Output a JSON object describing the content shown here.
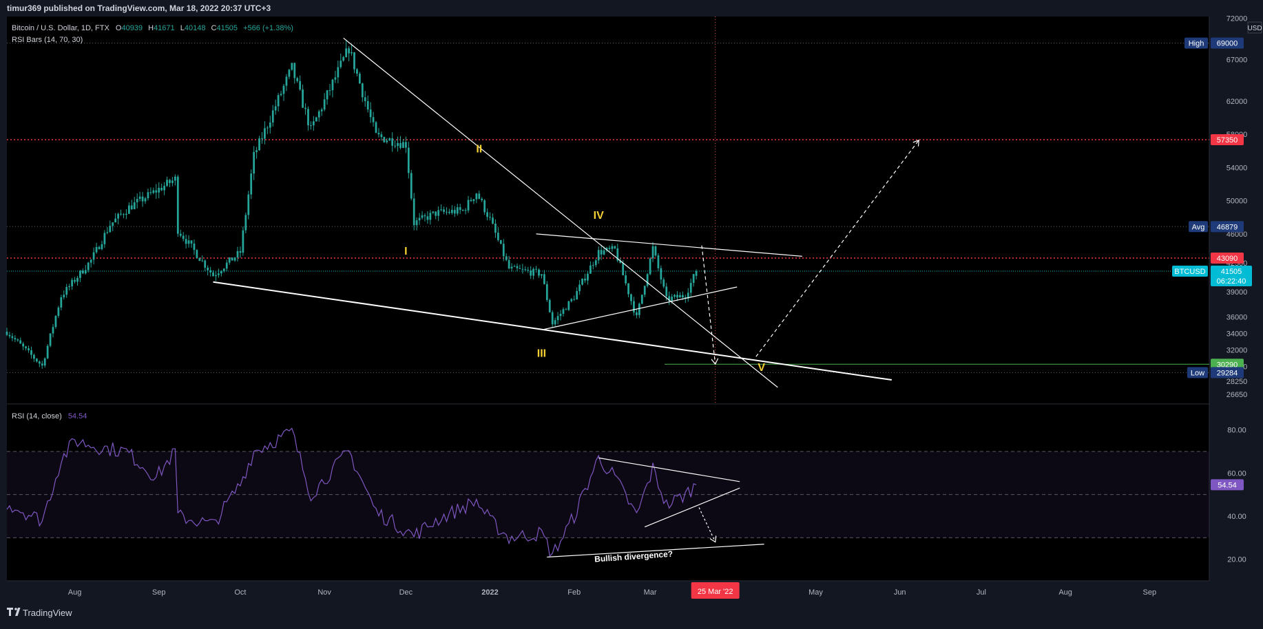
{
  "header": {
    "publisher": "timur369 published on TradingView.com, Mar 18, 2022 20:37 UTC+3"
  },
  "legend": {
    "symbol": "Bitcoin / U.S. Dollar, 1D, FTX",
    "open_label": "O",
    "open": "40939",
    "high_label": "H",
    "high": "41671",
    "low_label": "L",
    "low": "40148",
    "close_label": "C",
    "close": "41505",
    "change": "+566 (+1.38%)",
    "indicator": "RSI Bars (14, 70, 30)"
  },
  "rsi_legend": {
    "label": "RSI (14, close)",
    "value": "54.54"
  },
  "currency": "USD",
  "footer": {
    "brand": "TradingView"
  },
  "colors": {
    "background": "#000000",
    "candle": "#26a69a",
    "resistance": "#f23645",
    "support": "#4caf50",
    "rsi_line": "#7e57c2",
    "wave_label": "#f5d033",
    "last_price": "#00bcd4"
  },
  "chart_data": [
    {
      "type": "candlestick",
      "symbol": "BTCUSD",
      "interval": "1D",
      "price_axis": {
        "range": [
          25500,
          72200
        ],
        "ticks": [
          "72000",
          "67000",
          "62000",
          "58000",
          "54000",
          "50000",
          "46000",
          "42500",
          "39000",
          "36000",
          "34000",
          "32000",
          "30000",
          "28250",
          "26650"
        ],
        "tick_values": [
          72000,
          67000,
          62000,
          58000,
          54000,
          50000,
          46000,
          42500,
          39000,
          36000,
          34000,
          32000,
          30000,
          28250,
          26650
        ]
      },
      "time_axis": {
        "labels": [
          "Aug",
          "Sep",
          "Oct",
          "Nov",
          "Dec",
          "2022",
          "Feb",
          "Mar",
          "May",
          "Jun",
          "Jul",
          "Aug",
          "Sep"
        ],
        "label_dates": [
          "2021-08-01",
          "2021-09-01",
          "2021-10-01",
          "2021-11-01",
          "2021-12-01",
          "2022-01-01",
          "2022-02-01",
          "2022-03-01",
          "2022-05-01",
          "2022-06-01",
          "2022-07-01",
          "2022-08-01",
          "2022-09-01"
        ],
        "range": [
          "2021-07-07",
          "2022-09-23"
        ],
        "crosshair_date": "2022-03-25",
        "crosshair_label": "25 Mar '22"
      },
      "price_waypoints": [
        [
          "2021-07-07",
          34200
        ],
        [
          "2021-07-20",
          30100
        ],
        [
          "2021-07-27",
          38500
        ],
        [
          "2021-08-07",
          42800
        ],
        [
          "2021-08-14",
          47100
        ],
        [
          "2021-08-21",
          49200
        ],
        [
          "2021-09-07",
          52600
        ],
        [
          "2021-09-08",
          46500
        ],
        [
          "2021-09-21",
          41000
        ],
        [
          "2021-10-01",
          43800
        ],
        [
          "2021-10-06",
          55400
        ],
        [
          "2021-10-20",
          66000
        ],
        [
          "2021-10-27",
          58500
        ],
        [
          "2021-11-10",
          68400
        ],
        [
          "2021-11-20",
          57800
        ],
        [
          "2021-12-01",
          56800
        ],
        [
          "2021-12-04",
          47300
        ],
        [
          "2021-12-12",
          48500
        ],
        [
          "2021-12-22",
          48800
        ],
        [
          "2021-12-27",
          51000
        ],
        [
          "2022-01-01",
          47700
        ],
        [
          "2022-01-08",
          41800
        ],
        [
          "2022-01-20",
          41200
        ],
        [
          "2022-01-24",
          35200
        ],
        [
          "2022-02-01",
          38400
        ],
        [
          "2022-02-10",
          43800
        ],
        [
          "2022-02-16",
          44100
        ],
        [
          "2022-02-24",
          35900
        ],
        [
          "2022-03-02",
          44300
        ],
        [
          "2022-03-07",
          38100
        ],
        [
          "2022-03-14",
          38600
        ],
        [
          "2022-03-18",
          41505
        ]
      ],
      "levels": [
        {
          "name": "High",
          "value": 69000,
          "label": "69000"
        },
        {
          "name": "resistance",
          "value": 57350,
          "label": "57350"
        },
        {
          "name": "Avg",
          "value": 46879,
          "label": "46879"
        },
        {
          "name": "resistance",
          "value": 43090,
          "label": "43090"
        },
        {
          "name": "BTCUSD",
          "value": 41505,
          "label": "41505",
          "countdown": "06:22:40"
        },
        {
          "name": "support",
          "value": 30290,
          "label": "30290"
        },
        {
          "name": "Low",
          "value": 29284,
          "label": "29284"
        }
      ],
      "wave_labels": [
        {
          "text": "I",
          "date": "2021-12-01",
          "price": 43500
        },
        {
          "text": "II",
          "date": "2021-12-28",
          "price": 55800
        },
        {
          "text": "III",
          "date": "2022-01-20",
          "price": 31200
        },
        {
          "text": "IV",
          "date": "2022-02-10",
          "price": 47800
        },
        {
          "text": "V",
          "date": "2022-04-11",
          "price": 29500
        }
      ],
      "trendlines": [
        {
          "from": [
            "2021-09-21",
            40200
          ],
          "to": [
            "2022-05-29",
            28400
          ]
        },
        {
          "from": [
            "2021-11-08",
            69600
          ],
          "to": [
            "2022-04-17",
            27500
          ]
        },
        {
          "from": [
            "2022-01-21",
            34500
          ],
          "to": [
            "2022-04-02",
            39600
          ]
        },
        {
          "from": [
            "2022-01-18",
            46000
          ],
          "to": [
            "2022-04-26",
            43300
          ]
        }
      ],
      "projection_arrows": [
        {
          "from": [
            "2022-03-20",
            44600
          ],
          "to": [
            "2022-03-25",
            30300
          ]
        },
        {
          "from": [
            "2022-04-09",
            31200
          ],
          "to": [
            "2022-06-08",
            57300
          ]
        }
      ]
    },
    {
      "type": "line",
      "name": "RSI (14, close)",
      "y_axis": {
        "range": [
          10,
          92
        ],
        "ticks": [
          "80.00",
          "60.00",
          "40.00",
          "20.00"
        ],
        "tick_values": [
          80,
          60,
          40,
          20
        ]
      },
      "bands": {
        "upper": 70,
        "middle": 50,
        "lower": 30
      },
      "last_value": 54.54,
      "waypoints": [
        [
          "2021-07-07",
          46
        ],
        [
          "2021-07-20",
          38
        ],
        [
          "2021-07-27",
          66
        ],
        [
          "2021-08-01",
          75
        ],
        [
          "2021-08-10",
          72
        ],
        [
          "2021-08-20",
          70
        ],
        [
          "2021-08-31",
          58
        ],
        [
          "2021-09-07",
          70
        ],
        [
          "2021-09-08",
          40
        ],
        [
          "2021-09-21",
          36
        ],
        [
          "2021-10-01",
          55
        ],
        [
          "2021-10-06",
          70
        ],
        [
          "2021-10-20",
          79
        ],
        [
          "2021-10-27",
          50
        ],
        [
          "2021-11-10",
          70
        ],
        [
          "2021-11-20",
          42
        ],
        [
          "2021-12-04",
          31
        ],
        [
          "2021-12-12",
          38
        ],
        [
          "2021-12-27",
          47
        ],
        [
          "2022-01-01",
          38
        ],
        [
          "2022-01-08",
          30
        ],
        [
          "2022-01-20",
          32
        ],
        [
          "2022-01-24",
          22
        ],
        [
          "2022-02-01",
          40
        ],
        [
          "2022-02-10",
          67
        ],
        [
          "2022-02-16",
          58
        ],
        [
          "2022-02-24",
          40
        ],
        [
          "2022-03-02",
          62
        ],
        [
          "2022-03-07",
          45
        ],
        [
          "2022-03-14",
          50
        ],
        [
          "2022-03-18",
          54.54
        ]
      ],
      "trendlines": [
        {
          "from": [
            "2022-02-10",
            67
          ],
          "to": [
            "2022-04-03",
            56
          ]
        },
        {
          "from": [
            "2022-02-27",
            35
          ],
          "to": [
            "2022-04-03",
            53
          ]
        },
        {
          "from": [
            "2022-01-22",
            21
          ],
          "to": [
            "2022-04-12",
            27
          ]
        }
      ],
      "projection_arrow": {
        "from": [
          "2022-03-19",
          44
        ],
        "to": [
          "2022-03-25",
          28
        ]
      },
      "annotation": {
        "text": "Bullish divergence?",
        "date": "2022-02-23",
        "value": 20
      }
    }
  ]
}
